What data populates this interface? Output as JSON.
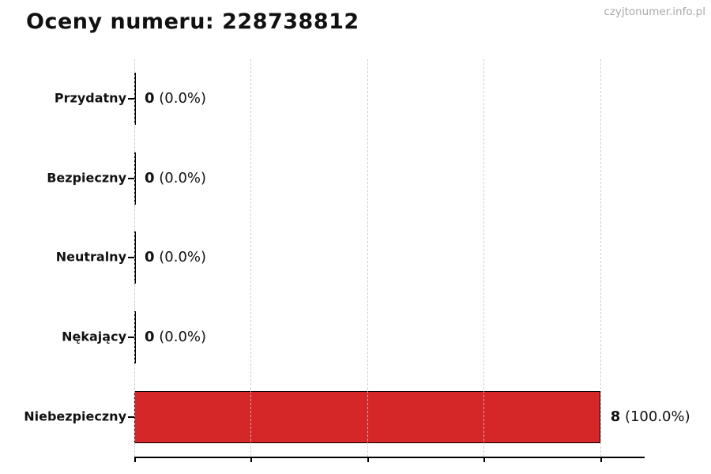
{
  "header": {
    "title": "Oceny numeru: 228738812",
    "watermark": "czyjtonumer.info.pl"
  },
  "chart_data": {
    "type": "bar",
    "orientation": "horizontal",
    "title": "Oceny numeru: 228738812",
    "categories": [
      "Przydatny",
      "Bezpieczny",
      "Neutralny",
      "Nękający",
      "Niebezpieczny"
    ],
    "values": [
      0,
      0,
      0,
      0,
      8
    ],
    "counts": [
      "0",
      "0",
      "0",
      "0",
      "8"
    ],
    "percents": [
      "0.0%",
      "0.0%",
      "0.0%",
      "0.0%",
      "100.0%"
    ],
    "value_labels": [
      "0 (0.0%)",
      "0 (0.0%)",
      "0 (0.0%)",
      "0 (0.0%)",
      "8 (100.0%)"
    ],
    "xlabel": "",
    "ylabel": "",
    "xlim": [
      0,
      8.75
    ],
    "grid_ticks": [
      0,
      2,
      4,
      6,
      8
    ],
    "grid": "vertical dashed, drawn above bars",
    "legend": "none",
    "colors": {
      "bar_fill": "#d62728",
      "bar_edge": "#000000",
      "zero_bar_line": "#000000",
      "gridline": "#c8c8c8",
      "axis": "#000000",
      "text": "#111111",
      "watermark": "#a9a9a9",
      "background": "#ffffff"
    }
  }
}
